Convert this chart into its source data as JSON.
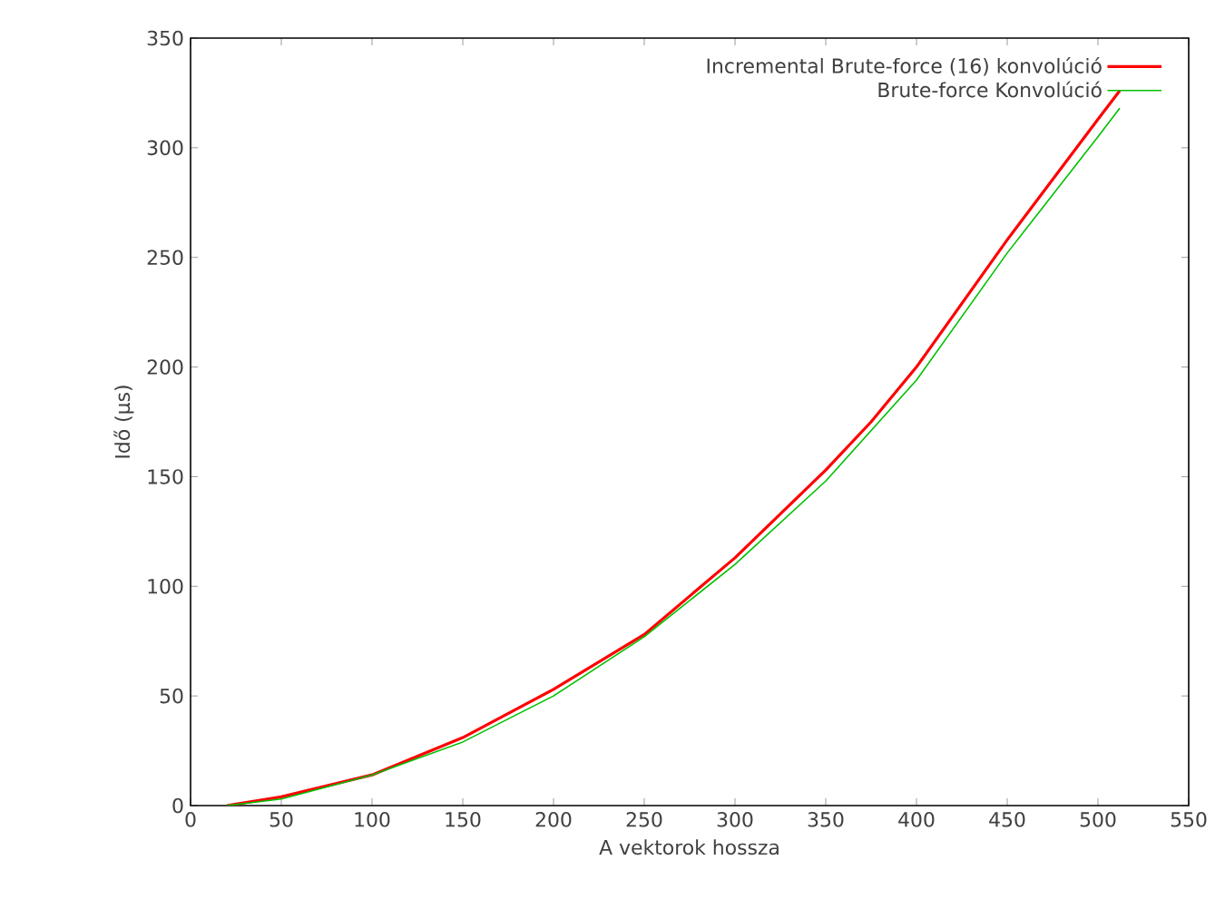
{
  "chart_data": {
    "type": "line",
    "xlabel": "A vektorok hossza",
    "ylabel": "Idő (µs)",
    "xlim": [
      0,
      550
    ],
    "ylim": [
      0,
      350
    ],
    "xticks": [
      0,
      50,
      100,
      150,
      200,
      250,
      300,
      350,
      400,
      450,
      500,
      550
    ],
    "yticks": [
      0,
      50,
      100,
      150,
      200,
      250,
      300,
      350
    ],
    "legend": "top right",
    "series": [
      {
        "name": "Incremental Brute-force (16) konvolúció",
        "color": "#ff0000",
        "x": [
          20,
          50,
          100,
          150,
          200,
          250,
          300,
          350,
          375,
          400,
          450,
          500,
          512
        ],
        "values": [
          0,
          4,
          14,
          31,
          53,
          78,
          113,
          153,
          175,
          200,
          258,
          313,
          326
        ]
      },
      {
        "name": "Brute-force Konvolúció",
        "color": "#00c000",
        "x": [
          20,
          50,
          100,
          150,
          200,
          250,
          300,
          350,
          400,
          450,
          500,
          512
        ],
        "values": [
          0,
          3,
          14,
          29,
          50,
          77,
          110,
          148,
          194,
          252,
          305,
          318
        ]
      }
    ]
  }
}
